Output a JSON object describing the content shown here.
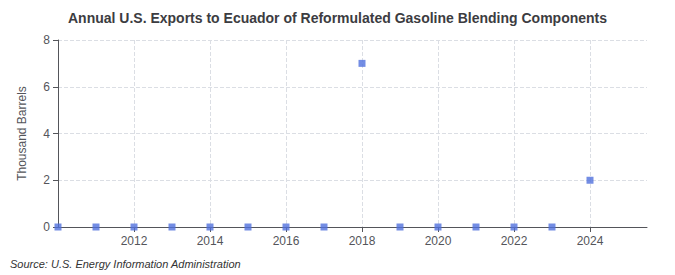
{
  "chart_data": {
    "type": "scatter",
    "title": "Annual U.S. Exports to Ecuador of Reformulated Gasoline Blending Components",
    "ylabel": "Thousand Barrels",
    "annotation": "Source: U.S. Energy Information Administration",
    "x": [
      2010,
      2011,
      2012,
      2013,
      2014,
      2015,
      2016,
      2017,
      2018,
      2019,
      2020,
      2021,
      2022,
      2023,
      2024
    ],
    "values": [
      0,
      0,
      0,
      0,
      0,
      0,
      0,
      0,
      7,
      0,
      0,
      0,
      0,
      0,
      2
    ],
    "marker": "square",
    "xlim": [
      2010,
      2025.5
    ],
    "xticks": [
      2012,
      2014,
      2016,
      2018,
      2020,
      2022,
      2024
    ],
    "ylim": [
      0,
      8
    ],
    "yticks": [
      0,
      2,
      4,
      6,
      8
    ],
    "grid": true
  }
}
